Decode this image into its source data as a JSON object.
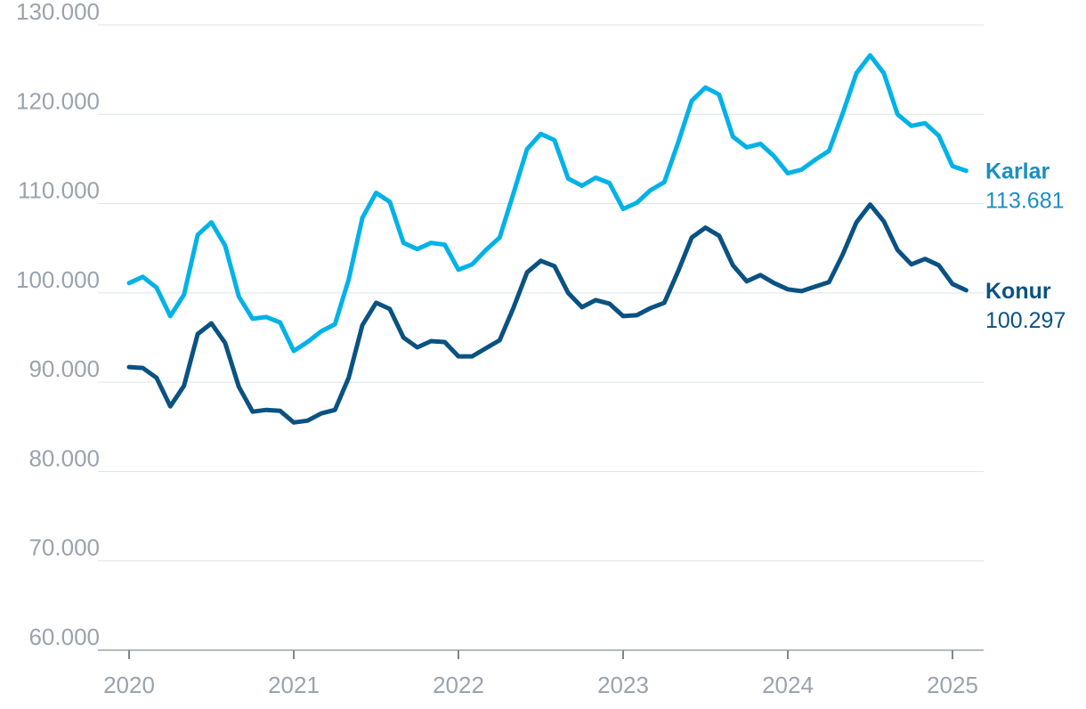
{
  "chart_data": {
    "type": "line",
    "title": "",
    "xlabel": "",
    "ylabel": "",
    "ylim": [
      60000,
      130000
    ],
    "xlim": [
      "2020-01",
      "2025-03"
    ],
    "grid": "horizontal",
    "legend": "end-of-line labels",
    "y_ticks": [
      60000,
      70000,
      80000,
      90000,
      100000,
      110000,
      120000,
      130000
    ],
    "y_tick_labels": [
      "60.000",
      "70.000",
      "80.000",
      "90.000",
      "100.000",
      "110.000",
      "120.000",
      "130.000"
    ],
    "x_ticks": [
      "2020-01",
      "2021-01",
      "2022-01",
      "2023-01",
      "2024-01",
      "2025-01"
    ],
    "x_tick_labels": [
      "2020",
      "2021",
      "2022",
      "2023",
      "2024",
      "2025"
    ],
    "x": [
      "2020-01",
      "2020-02",
      "2020-03",
      "2020-04",
      "2020-05",
      "2020-06",
      "2020-07",
      "2020-08",
      "2020-09",
      "2020-10",
      "2020-11",
      "2020-12",
      "2021-01",
      "2021-02",
      "2021-03",
      "2021-04",
      "2021-05",
      "2021-06",
      "2021-07",
      "2021-08",
      "2021-09",
      "2021-10",
      "2021-11",
      "2021-12",
      "2022-01",
      "2022-02",
      "2022-03",
      "2022-04",
      "2022-05",
      "2022-06",
      "2022-07",
      "2022-08",
      "2022-09",
      "2022-10",
      "2022-11",
      "2022-12",
      "2023-01",
      "2023-02",
      "2023-03",
      "2023-04",
      "2023-05",
      "2023-06",
      "2023-07",
      "2023-08",
      "2023-09",
      "2023-10",
      "2023-11",
      "2023-12",
      "2024-01",
      "2024-02",
      "2024-03",
      "2024-04",
      "2024-05",
      "2024-06",
      "2024-07",
      "2024-08",
      "2024-09",
      "2024-10",
      "2024-11",
      "2024-12",
      "2025-01",
      "2025-02"
    ],
    "series": [
      {
        "name": "Karlar",
        "last_value_label": "113.681",
        "color": "#00b2e8",
        "label_color": "#1a8fc1",
        "values": [
          101100,
          101800,
          100600,
          97400,
          99800,
          106500,
          107900,
          105300,
          99600,
          97100,
          97300,
          96700,
          93500,
          94500,
          95700,
          96500,
          101500,
          108400,
          111200,
          110200,
          105600,
          104900,
          105600,
          105400,
          102600,
          103200,
          104800,
          106200,
          111100,
          116100,
          117800,
          117100,
          112800,
          112000,
          112900,
          112300,
          109400,
          110100,
          111500,
          112400,
          116800,
          121500,
          123000,
          122200,
          117500,
          116300,
          116700,
          115300,
          113400,
          113800,
          114900,
          115900,
          120100,
          124600,
          126600,
          124600,
          120000,
          118700,
          119000,
          117600,
          114200,
          113681
        ]
      },
      {
        "name": "Konur",
        "last_value_label": "100.297",
        "color": "#0a5282",
        "label_color": "#0a5282",
        "values": [
          91700,
          91600,
          90500,
          87300,
          89600,
          95400,
          96600,
          94400,
          89500,
          86700,
          86900,
          86800,
          85500,
          85700,
          86500,
          86900,
          90500,
          96400,
          98900,
          98200,
          95000,
          93900,
          94600,
          94500,
          92900,
          92900,
          93800,
          94700,
          98300,
          102300,
          103600,
          103000,
          100000,
          98400,
          99200,
          98800,
          97400,
          97500,
          98300,
          98900,
          102400,
          106200,
          107300,
          106400,
          103100,
          101300,
          102000,
          101100,
          100400,
          100200,
          100700,
          101200,
          104300,
          107900,
          109900,
          108000,
          104800,
          103200,
          103800,
          103100,
          101000,
          100297
        ]
      }
    ]
  }
}
